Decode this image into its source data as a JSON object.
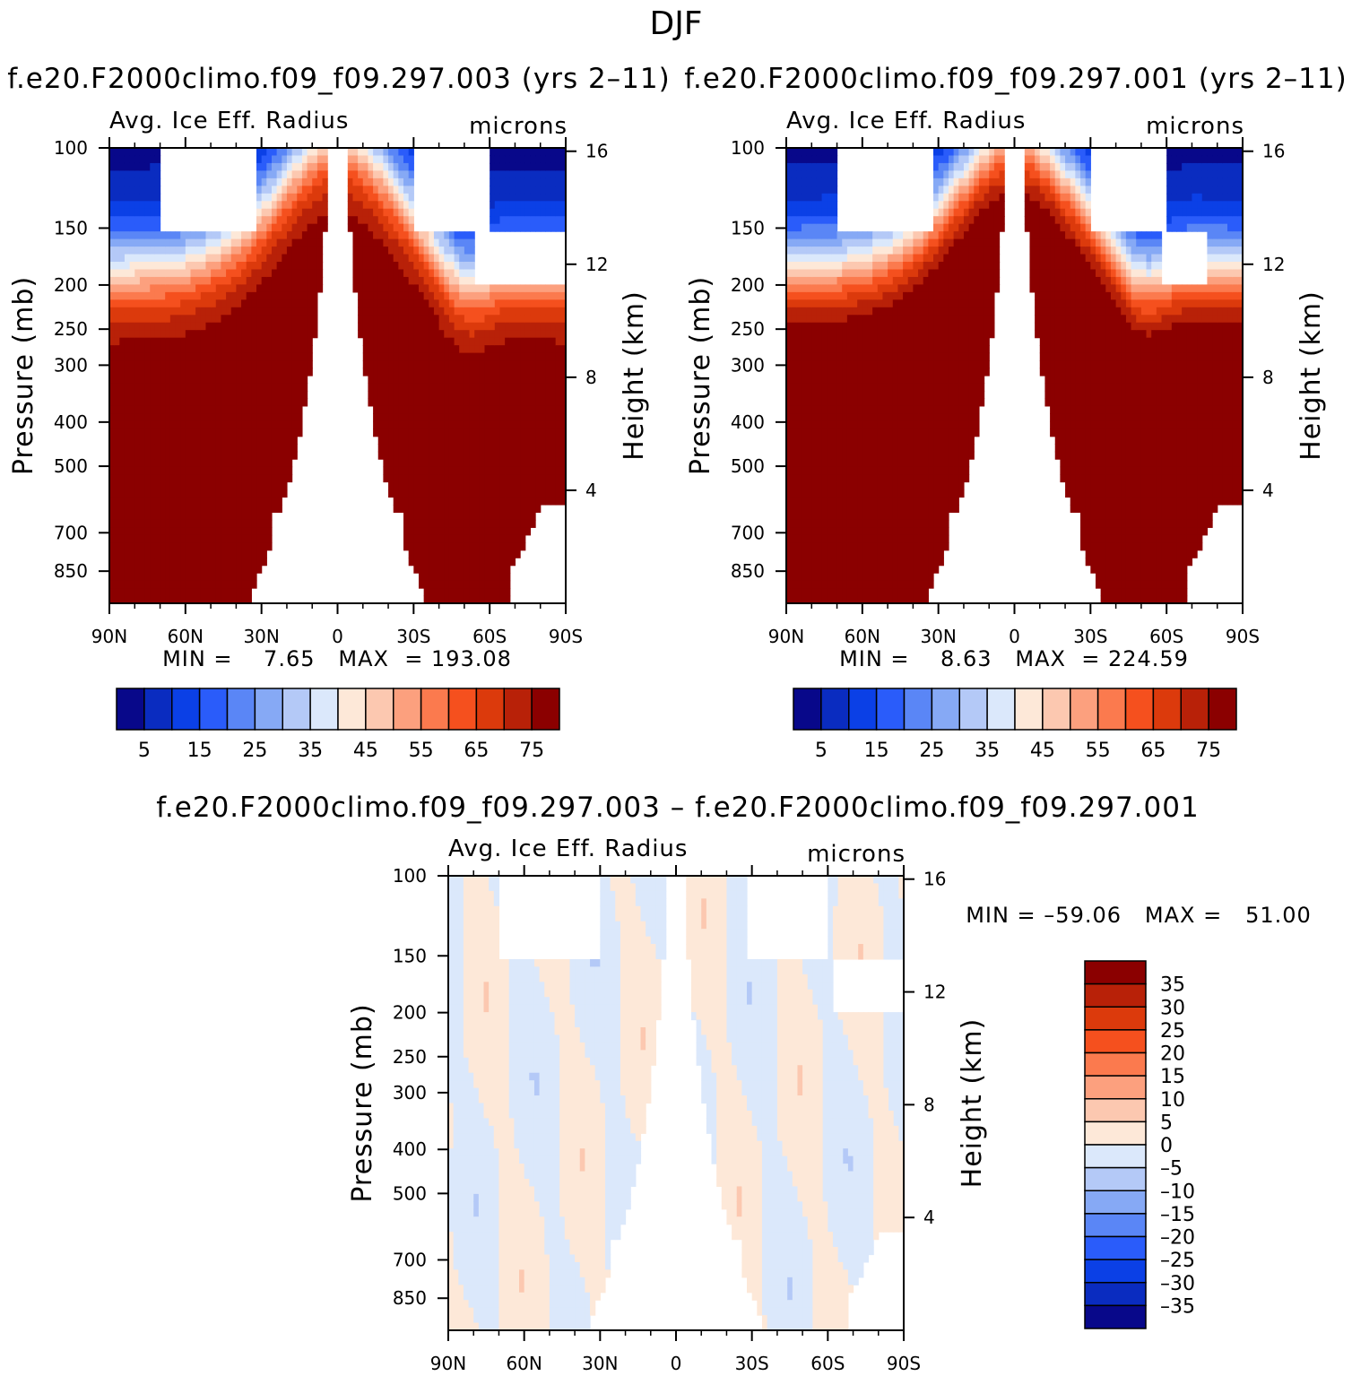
{
  "figure_title": "DJF",
  "chart_data": [
    {
      "type": "heatmap",
      "title": "f.e20.F2000climo.f09_f09.297.003 (yrs 2–11)",
      "left_subtitle": "Avg. Ice Eff. Radius",
      "right_subtitle": "microns",
      "ylabel": "Pressure (mb)",
      "ylabel_right": "Height (km)",
      "x_ticks": [
        "90N",
        "60N",
        "30N",
        "0",
        "30S",
        "60S",
        "90S"
      ],
      "x_tick_values": [
        90,
        60,
        30,
        0,
        -30,
        -60,
        -90
      ],
      "y_ticks": [
        "100",
        "150",
        "200",
        "250",
        "300",
        "400",
        "500",
        "700",
        "850"
      ],
      "y_tick_values": [
        100,
        150,
        200,
        250,
        300,
        400,
        500,
        700,
        850
      ],
      "y_right_ticks": [
        "4",
        "8",
        "12",
        "16"
      ],
      "y_right_tick_values": [
        4,
        8,
        12,
        16
      ],
      "ylim": [
        100,
        1000
      ],
      "yscale": "log-pressure",
      "stats_text": "MIN =    7.65   MAX  = 193.08",
      "min": 7.65,
      "max": 193.08,
      "colorbar_labels": [
        "5",
        "15",
        "25",
        "35",
        "45",
        "55",
        "65",
        "75"
      ],
      "colorbar_levels": [
        5,
        10,
        15,
        20,
        25,
        30,
        35,
        40,
        45,
        50,
        55,
        60,
        65,
        70,
        75
      ],
      "colorbar_colors": [
        "#08088a",
        "#0a2cc0",
        "#0b40e6",
        "#2a5cfa",
        "#5a86f6",
        "#86a9f5",
        "#b4c9f7",
        "#dbe8fb",
        "#fde8d8",
        "#fcc8b0",
        "#fca07e",
        "#fb7a4e",
        "#f5501e",
        "#dc3a0c",
        "#b82108",
        "#8b0000"
      ],
      "colorbar_orientation": "horizontal"
    },
    {
      "type": "heatmap",
      "title": "f.e20.F2000climo.f09_f09.297.001 (yrs 2–11)",
      "left_subtitle": "Avg. Ice Eff. Radius",
      "right_subtitle": "microns",
      "ylabel": "Pressure (mb)",
      "ylabel_right": "Height (km)",
      "x_ticks": [
        "90N",
        "60N",
        "30N",
        "0",
        "30S",
        "60S",
        "90S"
      ],
      "x_tick_values": [
        90,
        60,
        30,
        0,
        -30,
        -60,
        -90
      ],
      "y_ticks": [
        "100",
        "150",
        "200",
        "250",
        "300",
        "400",
        "500",
        "700",
        "850"
      ],
      "y_tick_values": [
        100,
        150,
        200,
        250,
        300,
        400,
        500,
        700,
        850
      ],
      "y_right_ticks": [
        "4",
        "8",
        "12",
        "16"
      ],
      "y_right_tick_values": [
        4,
        8,
        12,
        16
      ],
      "ylim": [
        100,
        1000
      ],
      "yscale": "log-pressure",
      "stats_text": "MIN =    8.63   MAX  = 224.59",
      "min": 8.63,
      "max": 224.59,
      "colorbar_labels": [
        "5",
        "15",
        "25",
        "35",
        "45",
        "55",
        "65",
        "75"
      ],
      "colorbar_levels": [
        5,
        10,
        15,
        20,
        25,
        30,
        35,
        40,
        45,
        50,
        55,
        60,
        65,
        70,
        75
      ],
      "colorbar_colors": [
        "#08088a",
        "#0a2cc0",
        "#0b40e6",
        "#2a5cfa",
        "#5a86f6",
        "#86a9f5",
        "#b4c9f7",
        "#dbe8fb",
        "#fde8d8",
        "#fcc8b0",
        "#fca07e",
        "#fb7a4e",
        "#f5501e",
        "#dc3a0c",
        "#b82108",
        "#8b0000"
      ],
      "colorbar_orientation": "horizontal"
    },
    {
      "type": "heatmap",
      "title": "f.e20.F2000climo.f09_f09.297.003 – f.e20.F2000climo.f09_f09.297.001",
      "left_subtitle": "Avg. Ice Eff. Radius",
      "right_subtitle": "microns",
      "ylabel": "Pressure (mb)",
      "ylabel_right": "Height (km)",
      "x_ticks": [
        "90N",
        "60N",
        "30N",
        "0",
        "30S",
        "60S",
        "90S"
      ],
      "x_tick_values": [
        90,
        60,
        30,
        0,
        -30,
        -60,
        -90
      ],
      "y_ticks": [
        "100",
        "150",
        "200",
        "250",
        "300",
        "400",
        "500",
        "700",
        "850"
      ],
      "y_tick_values": [
        100,
        150,
        200,
        250,
        300,
        400,
        500,
        700,
        850
      ],
      "y_right_ticks": [
        "4",
        "8",
        "12",
        "16"
      ],
      "y_right_tick_values": [
        4,
        8,
        12,
        16
      ],
      "ylim": [
        100,
        1000
      ],
      "yscale": "log-pressure",
      "stats_text": "MIN = –59.06   MAX =   51.00",
      "min": -59.06,
      "max": 51.0,
      "colorbar_labels": [
        "35",
        "30",
        "25",
        "20",
        "15",
        "10",
        "5",
        "0",
        "–5",
        "–10",
        "–15",
        "–20",
        "–25",
        "–30",
        "–35"
      ],
      "colorbar_levels": [
        35,
        30,
        25,
        20,
        15,
        10,
        5,
        0,
        -5,
        -10,
        -15,
        -20,
        -25,
        -30,
        -35
      ],
      "colorbar_colors": [
        "#8b0000",
        "#b82108",
        "#dc3a0c",
        "#f5501e",
        "#fb7a4e",
        "#fca07e",
        "#fcc8b0",
        "#fde8d8",
        "#dbe8fb",
        "#b4c9f7",
        "#86a9f5",
        "#5a86f6",
        "#2a5cfa",
        "#0b40e6",
        "#0a2cc0",
        "#08088a"
      ],
      "colorbar_orientation": "vertical"
    }
  ]
}
